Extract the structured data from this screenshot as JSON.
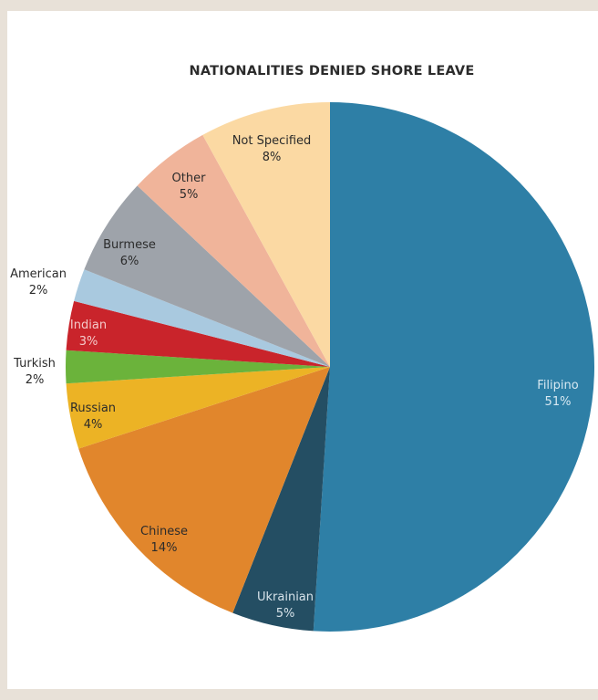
{
  "chart_data": {
    "type": "pie",
    "title": "NATIONALITIES DENIED SHORE LEAVE",
    "start_angle_deg": 0,
    "direction": "clockwise",
    "slices": [
      {
        "label": "Filipino",
        "value": 51,
        "value_label": "51%",
        "color": "#2e7fa6",
        "label_color": "#d8e9f2"
      },
      {
        "label": "Ukrainian",
        "value": 5,
        "value_label": "5%",
        "color": "#244e63",
        "label_color": "#d7e3ea"
      },
      {
        "label": "Chinese",
        "value": 14,
        "value_label": "14%",
        "color": "#e1862c",
        "label_color": "#2b2b2b"
      },
      {
        "label": "Russian",
        "value": 4,
        "value_label": "4%",
        "color": "#ecb325",
        "label_color": "#2b2b2b"
      },
      {
        "label": "Turkish",
        "value": 2,
        "value_label": "2%",
        "color": "#6bb33b",
        "label_color": "#2b2b2b"
      },
      {
        "label": "Indian",
        "value": 3,
        "value_label": "3%",
        "color": "#c9242b",
        "label_color": "#f4c9c9"
      },
      {
        "label": "American",
        "value": 2,
        "value_label": "2%",
        "color": "#a9c9df",
        "label_color": "#2b2b2b"
      },
      {
        "label": "Burmese",
        "value": 6,
        "value_label": "6%",
        "color": "#9ea3aa",
        "label_color": "#2b2b2b"
      },
      {
        "label": "Other",
        "value": 5,
        "value_label": "5%",
        "color": "#f0b49a",
        "label_color": "#2b2b2b"
      },
      {
        "label": "Not Specified",
        "value": 8,
        "value_label": "8%",
        "color": "#fbd9a3",
        "label_color": "#2b2b2b"
      }
    ]
  }
}
